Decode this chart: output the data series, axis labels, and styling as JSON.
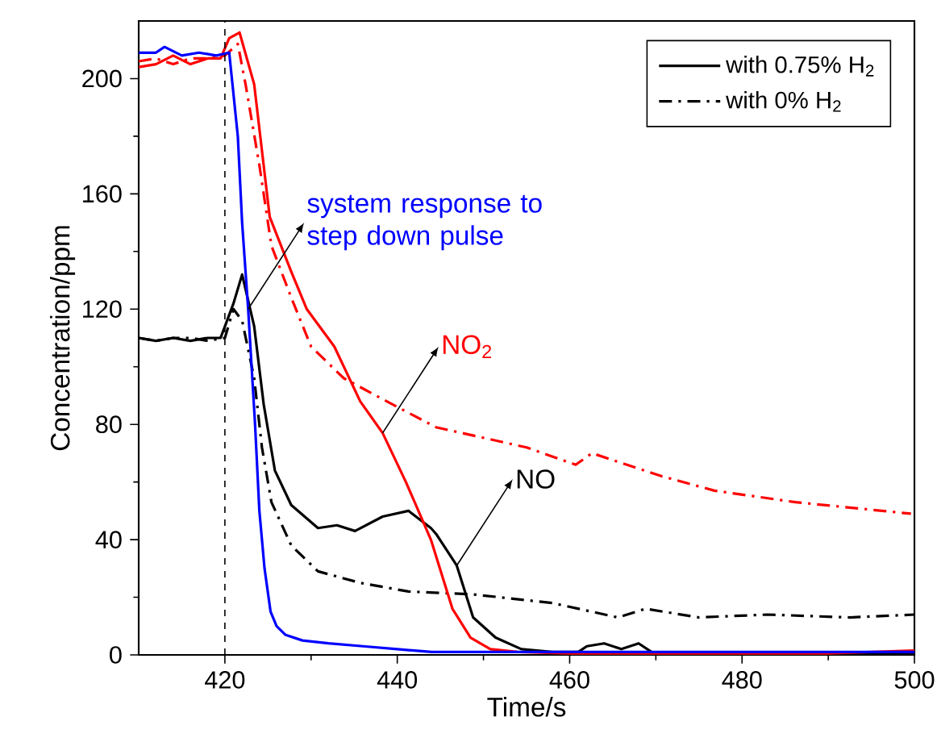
{
  "chart_data": {
    "type": "line",
    "xlabel": "Time/s",
    "ylabel": "Concentration/ppm",
    "xlim": [
      410,
      500
    ],
    "xticks": [
      420,
      440,
      460,
      480,
      500
    ],
    "ylim": [
      0,
      220
    ],
    "yticks": [
      0,
      40,
      80,
      120,
      160,
      200
    ],
    "legend": "top right",
    "grid": false,
    "marker": "none",
    "series": [
      {
        "name": "with 0.75% H$_{2}$",
        "color": "#000000",
        "line_style": "solid",
        "x": [
          410,
          412,
          414,
          416,
          418,
          419.5,
          421,
          422,
          423.4,
          424.5,
          425.8,
          427.7,
          430.8,
          433,
          435.1,
          438.3,
          441.3,
          443.9,
          444.5,
          446.9,
          448.8,
          451.4,
          454.4,
          458,
          461,
          462,
          464,
          466,
          468,
          469.5,
          470,
          480,
          490,
          500
        ],
        "values": [
          110,
          109,
          110,
          109,
          110,
          110,
          122,
          132,
          114,
          87,
          64,
          52,
          44,
          45,
          43,
          48,
          50,
          44,
          42,
          31,
          13,
          6,
          2,
          1,
          1,
          3,
          4,
          2,
          4,
          1,
          0.5,
          0.5,
          0.5,
          0.5
        ]
      },
      {
        "name": "with 0% H$_{2}$",
        "color": "#000000",
        "line_style": "dashdot",
        "x": [
          410,
          412,
          414,
          416,
          418,
          420,
          421,
          422,
          423.4,
          424.3,
          425.4,
          427.7,
          430.8,
          435.7,
          441.3,
          448.8,
          458,
          465.6,
          468.8,
          475,
          483,
          492.5,
          500
        ],
        "values": [
          110,
          109,
          110,
          110,
          109,
          110,
          120,
          116,
          96,
          72,
          53,
          38,
          29,
          25,
          22,
          21,
          18,
          13,
          16,
          13,
          14,
          13,
          14
        ]
      },
      {
        "color": "#ff0000",
        "line_style": "solid",
        "x": [
          410,
          412,
          414,
          416,
          418,
          419.5,
          420.5,
          421.7,
          423.4,
          425.2,
          427.7,
          429.5,
          432.7,
          435.7,
          438.3,
          441,
          443.9,
          446.4,
          448.5,
          450.8,
          454,
          460,
          470,
          480,
          490,
          500
        ],
        "values": [
          204,
          205,
          208,
          205,
          207,
          207,
          214,
          216,
          198,
          152,
          133,
          120,
          107,
          88,
          77,
          60,
          40,
          16,
          6,
          2,
          1,
          0.5,
          0.5,
          0.5,
          0.5,
          1.5
        ]
      },
      {
        "color": "#ff0000",
        "line_style": "dashdot",
        "x": [
          410,
          412,
          414,
          416,
          418,
          420,
          421.5,
          422.4,
          424,
          425.4,
          427.7,
          430,
          433.8,
          439.4,
          444.5,
          455,
          460.7,
          462.6,
          470.7,
          476.8,
          486.2,
          499.6
        ],
        "values": [
          206,
          207,
          205,
          207,
          207,
          208,
          212,
          198,
          170,
          142,
          124,
          107,
          96,
          87,
          79,
          72,
          66,
          70,
          62,
          57,
          53,
          49
        ]
      },
      {
        "color": "#0000ff",
        "line_style": "solid",
        "x": [
          410,
          412,
          413,
          415,
          417,
          419,
          420.5,
          421.5,
          422,
          422.7,
          423.5,
          424,
          424.6,
          425.3,
          426,
          427,
          429,
          432,
          436,
          440,
          444,
          450,
          460,
          480,
          500
        ],
        "values": [
          209,
          209,
          211,
          208,
          209,
          208,
          209,
          180,
          150,
          120,
          80,
          50,
          30,
          15,
          10,
          7,
          5,
          4,
          3,
          2,
          1,
          1,
          1,
          1,
          1
        ]
      }
    ],
    "ref_lines": [
      {
        "axis": "x",
        "value": 420,
        "color": "#000000",
        "line_style": "dashed"
      }
    ],
    "annotations": [
      {
        "text": "system response to step down pulse",
        "x": 422.7,
        "y": 120
      },
      {
        "text": "NO$_{2}$",
        "x": 438.3,
        "y": 77
      },
      {
        "text": "NO",
        "x": 446.9,
        "y": 31
      }
    ]
  }
}
